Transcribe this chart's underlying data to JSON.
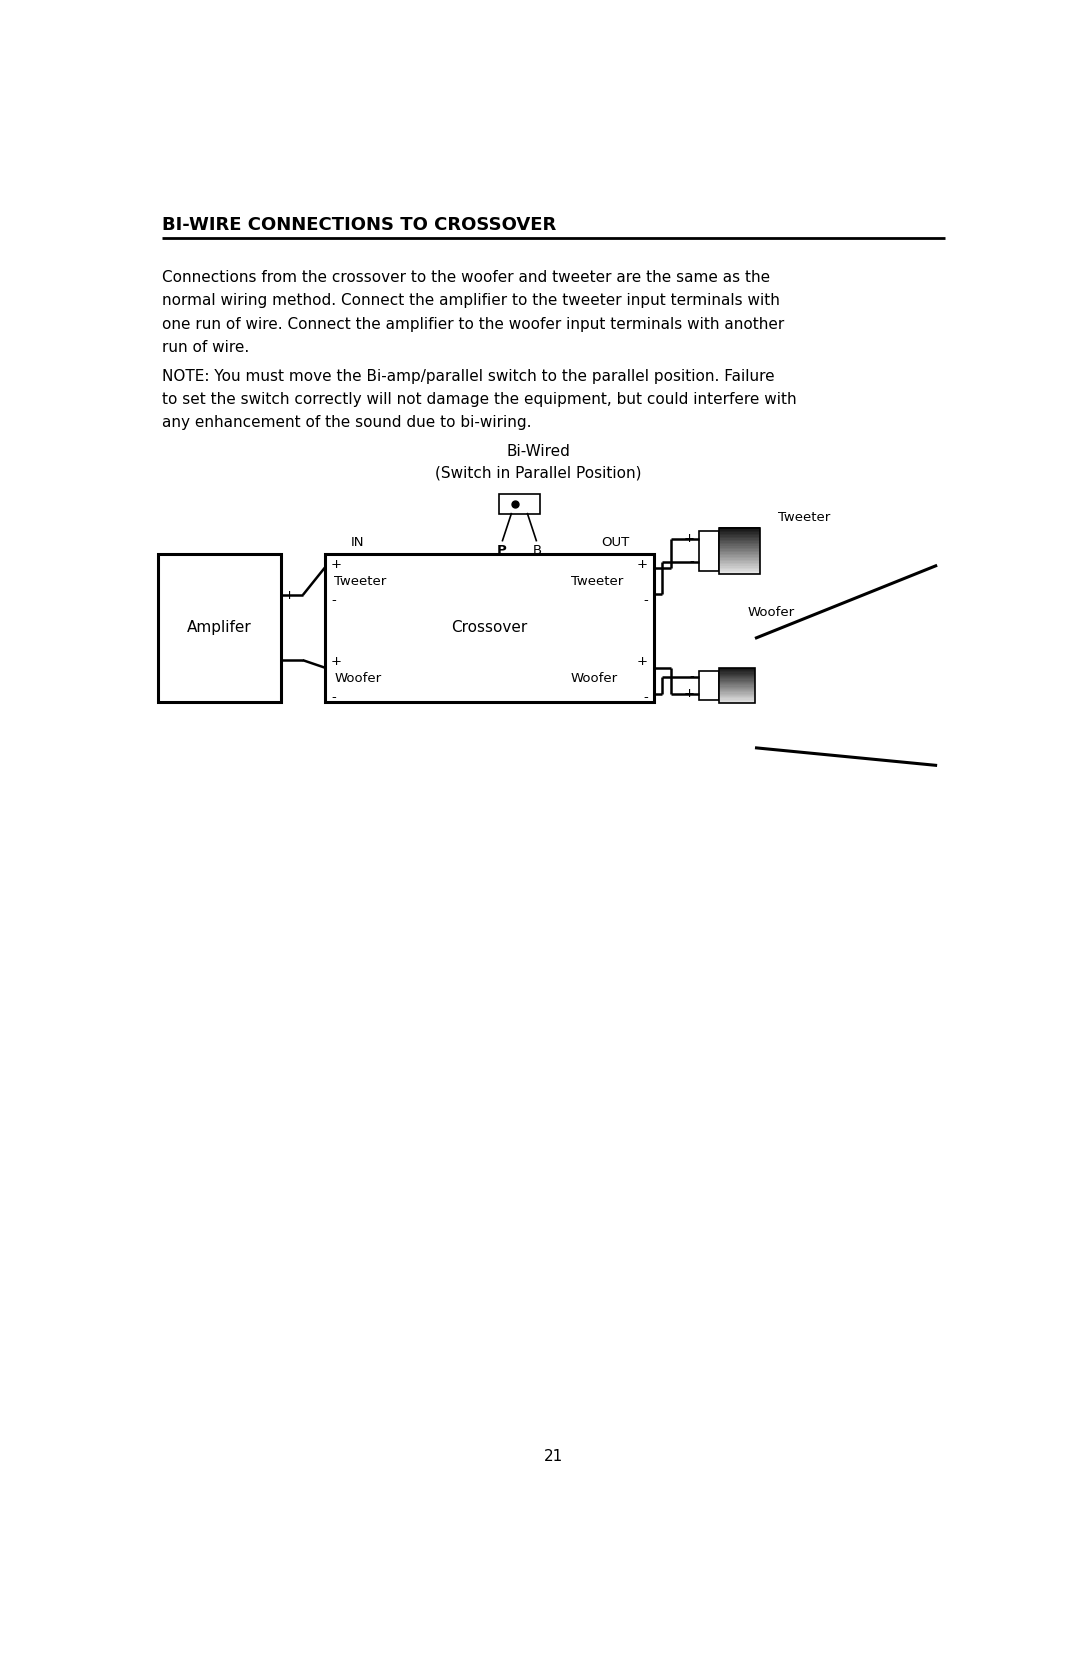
{
  "title": "BI-WIRE CONNECTIONS TO CROSSOVER",
  "para1_lines": [
    "Connections from the crossover to the woofer and tweeter are the same as the",
    "normal wiring method. Connect the amplifier to the tweeter input terminals with",
    "one run of wire. Connect the amplifier to the woofer input terminals with another",
    "run of wire."
  ],
  "note_lines": [
    "NOTE: You must move the Bi-amp/parallel switch to the parallel position. Failure",
    "to set the switch correctly will not damage the equipment, but could interfere with",
    "any enhancement of the sound due to bi-wiring."
  ],
  "diagram_title1": "Bi-Wired",
  "diagram_title2": "(Switch in Parallel Position)",
  "label_tweeter": "Tweeter",
  "label_woofer": "Woofer",
  "label_amplifier": "Amplifer",
  "label_crossover": "Crossover",
  "label_in": "IN",
  "label_out": "OUT",
  "label_P": "P",
  "label_B": "B",
  "page_number": "21",
  "bg_color": "#ffffff",
  "text_color": "#000000"
}
